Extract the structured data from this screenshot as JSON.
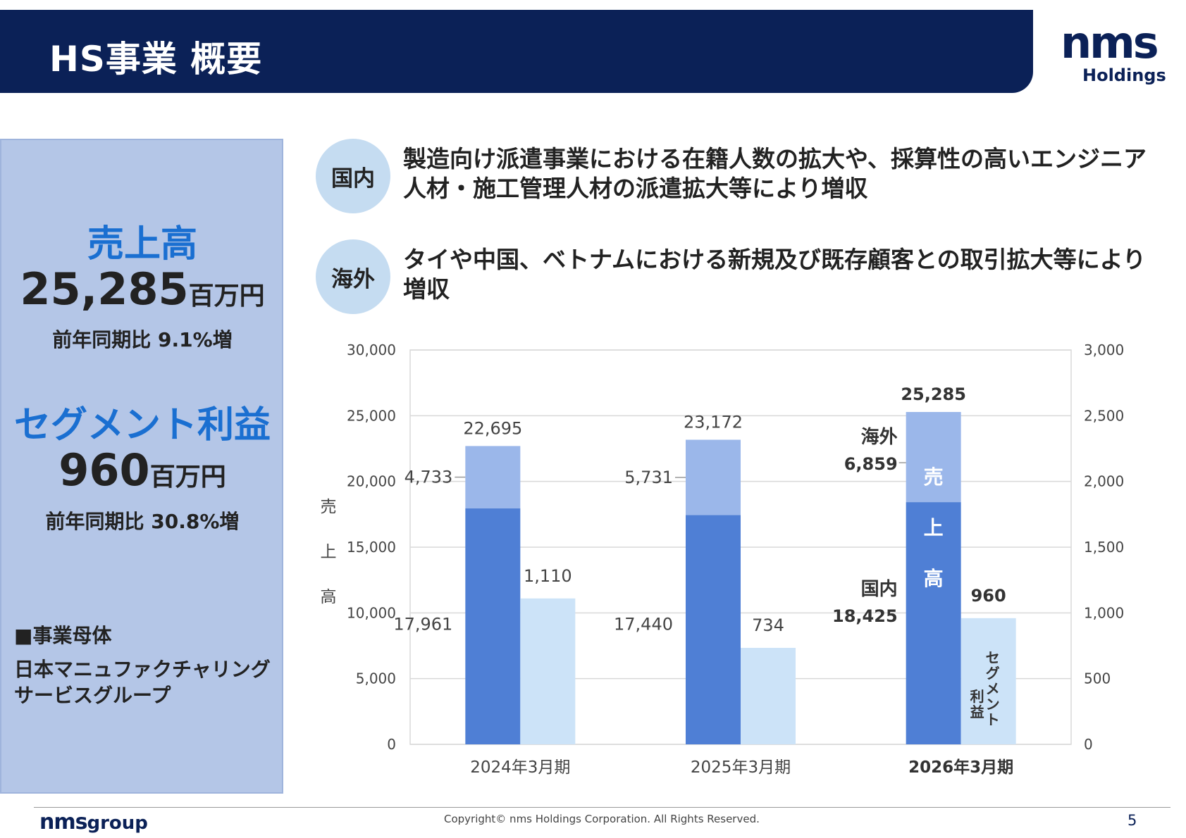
{
  "header": {
    "title": "HS事業 概要"
  },
  "logo": {
    "mark": "nms",
    "sub": "Holdings"
  },
  "summary": {
    "sales_label": "売上高",
    "sales_value": "25,285",
    "sales_unit": "百万円",
    "sales_yoy": "前年同期比 9.1%増",
    "segment_label": "セグメント利益",
    "segment_value": "960",
    "segment_unit": "百万円",
    "segment_yoy": "前年同期比 30.8%増",
    "entity_heading": "■事業母体",
    "entity_name": "日本マニュファクチャリングサービスグループ"
  },
  "bullets": [
    {
      "tag": "国内",
      "text": "製造向け派遣事業における在籍人数の拡大や、採算性の高いエンジニア人材・施工管理人材の派遣拡大等により増収"
    },
    {
      "tag": "海外",
      "text": "タイや中国、ベトナムにおける新規及び既存顧客との取引拡大等により増収"
    }
  ],
  "chart_data": {
    "type": "bar",
    "categories": [
      "2024年3月期",
      "2025年3月期",
      "2026年3月期"
    ],
    "series": [
      {
        "name": "国内",
        "axis": "left",
        "stack": "sales",
        "values": [
          17961,
          17440,
          18425
        ],
        "labels": [
          "17,961",
          "17,440",
          "18,425"
        ],
        "color": "#4f7fd5"
      },
      {
        "name": "海外",
        "axis": "left",
        "stack": "sales",
        "values": [
          4733,
          5731,
          6859
        ],
        "labels": [
          "4,733",
          "5,731",
          "6,859"
        ],
        "color": "#9bb7ea"
      },
      {
        "name": "セグメント利益",
        "axis": "right",
        "values": [
          1110,
          734,
          960
        ],
        "labels": [
          "1,110",
          "734",
          "960"
        ],
        "color": "#cce3f8"
      }
    ],
    "totals": [
      22695,
      23172,
      25285
    ],
    "total_labels": [
      "22,695",
      "23,172",
      "25,285"
    ],
    "y_left": {
      "label": "売上高",
      "ylim": [
        0,
        30000
      ],
      "ticks": [
        0,
        5000,
        10000,
        15000,
        20000,
        25000,
        30000
      ],
      "tick_labels": [
        "0",
        "5,000",
        "10,000",
        "15,000",
        "20,000",
        "25,000",
        "30,000"
      ]
    },
    "y_right": {
      "label": "セグメント利益",
      "ylim": [
        0,
        3000
      ],
      "ticks": [
        0,
        500,
        1000,
        1500,
        2000,
        2500,
        3000
      ],
      "tick_labels": [
        "0",
        "500",
        "1,000",
        "1,500",
        "2,000",
        "2,500",
        "3,000"
      ]
    },
    "annotations": {
      "overseas_label": "海外",
      "domestic_label": "国内",
      "sales_bar_label": "売上高",
      "profit_bar_label": "セグメント利益"
    },
    "grid": true
  },
  "footer": {
    "logo_mark": "nms",
    "logo_group": "group",
    "copyright": "Copyright© nms Holdings Corporation. All Rights Reserved.",
    "page": "5"
  }
}
